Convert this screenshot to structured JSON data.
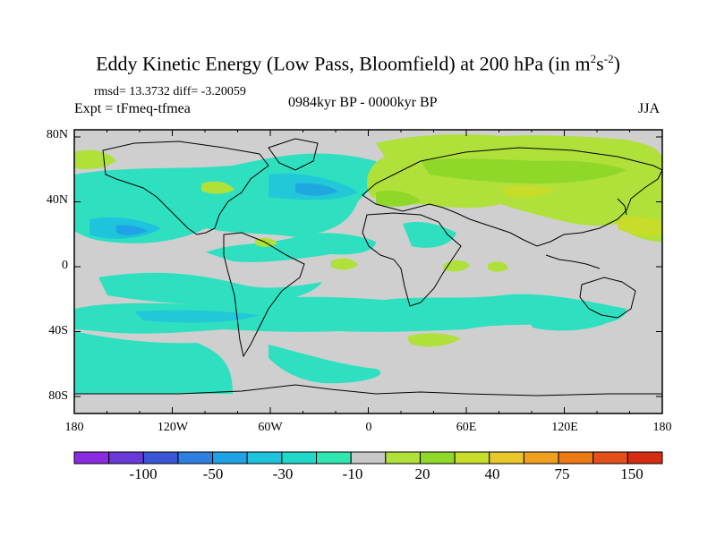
{
  "title": {
    "main": "Eddy Kinetic Energy (Low Pass, Bloomfield) at 200 hPa (in m",
    "sup1": "2",
    "mid": "s",
    "sup2": "-2",
    "end": ")"
  },
  "stats": "rmsd= 13.3732 diff= -3.20059",
  "experiment": "Expt = tFmeq-tfmea",
  "period": "0984kyr BP - 0000kyr BP",
  "season": "JJA",
  "axes": {
    "y_labels": [
      "80N",
      "40N",
      "0",
      "40S",
      "80S"
    ],
    "x_labels": [
      "180",
      "120W",
      "60W",
      "0",
      "60E",
      "120E",
      "180"
    ]
  },
  "colorbar": {
    "colors": [
      "#8a2be2",
      "#6a3ad8",
      "#3a55d6",
      "#2f7fe0",
      "#1fa3e6",
      "#1ec3dc",
      "#22d8c8",
      "#2fe6b0",
      "#c8c8c8",
      "#b0e03a",
      "#8fd82a",
      "#c8dc2a",
      "#e8c82a",
      "#f0a01e",
      "#ec7a14",
      "#e4501a",
      "#d42d14"
    ],
    "labels": [
      "-100",
      "-50",
      "-30",
      "-10",
      "20",
      "40",
      "75",
      "150"
    ]
  }
}
